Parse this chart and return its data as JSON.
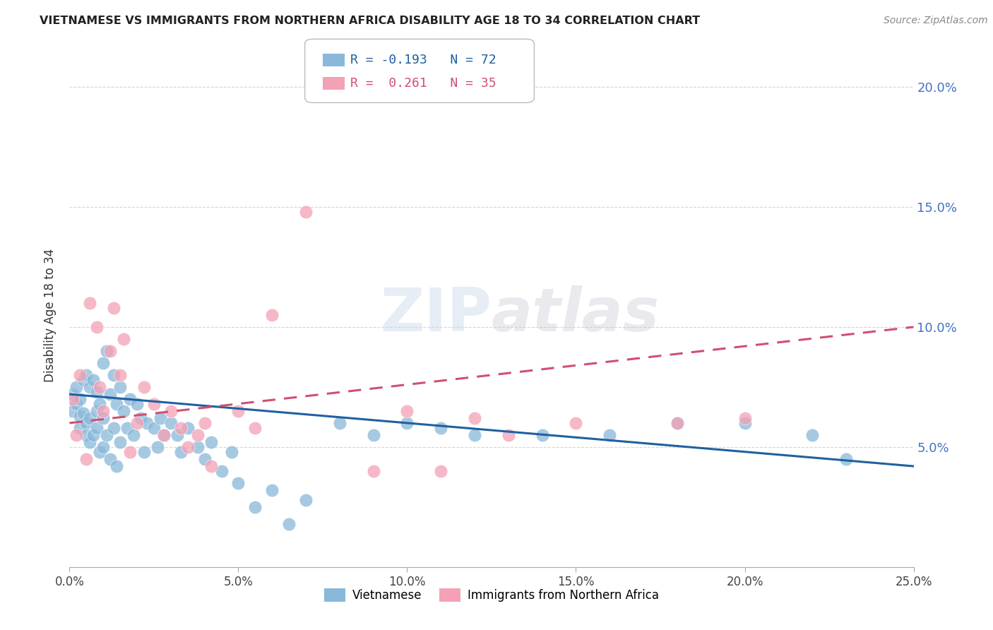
{
  "title": "VIETNAMESE VS IMMIGRANTS FROM NORTHERN AFRICA DISABILITY AGE 18 TO 34 CORRELATION CHART",
  "source": "Source: ZipAtlas.com",
  "ylabel": "Disability Age 18 to 34",
  "xlim": [
    0.0,
    0.25
  ],
  "ylim": [
    0.0,
    0.21
  ],
  "xticks": [
    0.0,
    0.05,
    0.1,
    0.15,
    0.2,
    0.25
  ],
  "yticks": [
    0.05,
    0.1,
    0.15,
    0.2
  ],
  "xtick_labels": [
    "0.0%",
    "5.0%",
    "10.0%",
    "15.0%",
    "20.0%",
    "25.0%"
  ],
  "ytick_labels": [
    "5.0%",
    "10.0%",
    "15.0%",
    "20.0%"
  ],
  "color_vietnamese": "#89b8d9",
  "color_northern_africa": "#f4a0b5",
  "line_color_vietnamese": "#2060a0",
  "line_color_northern_africa": "#d05070",
  "R_vietnamese": -0.193,
  "N_vietnamese": 72,
  "R_northern_africa": 0.261,
  "N_northern_africa": 35,
  "legend_label_vietnamese": "Vietnamese",
  "legend_label_northern_africa": "Immigrants from Northern Africa",
  "background_color": "#ffffff",
  "grid_color": "#cccccc",
  "title_color": "#222222",
  "right_tick_color": "#4472c4",
  "watermark": "ZIPatlas",
  "vietnamese_x": [
    0.001,
    0.001,
    0.002,
    0.002,
    0.003,
    0.003,
    0.003,
    0.004,
    0.004,
    0.005,
    0.005,
    0.005,
    0.006,
    0.006,
    0.006,
    0.007,
    0.007,
    0.008,
    0.008,
    0.008,
    0.009,
    0.009,
    0.01,
    0.01,
    0.01,
    0.011,
    0.011,
    0.012,
    0.012,
    0.013,
    0.013,
    0.014,
    0.014,
    0.015,
    0.015,
    0.016,
    0.017,
    0.018,
    0.019,
    0.02,
    0.021,
    0.022,
    0.023,
    0.025,
    0.026,
    0.027,
    0.028,
    0.03,
    0.032,
    0.033,
    0.035,
    0.038,
    0.04,
    0.042,
    0.045,
    0.048,
    0.05,
    0.055,
    0.06,
    0.065,
    0.07,
    0.08,
    0.09,
    0.1,
    0.11,
    0.12,
    0.14,
    0.16,
    0.18,
    0.2,
    0.22,
    0.23
  ],
  "vietnamese_y": [
    0.072,
    0.065,
    0.075,
    0.068,
    0.07,
    0.063,
    0.058,
    0.078,
    0.064,
    0.08,
    0.06,
    0.055,
    0.075,
    0.062,
    0.052,
    0.078,
    0.055,
    0.073,
    0.065,
    0.058,
    0.068,
    0.048,
    0.085,
    0.062,
    0.05,
    0.09,
    0.055,
    0.072,
    0.045,
    0.08,
    0.058,
    0.068,
    0.042,
    0.075,
    0.052,
    0.065,
    0.058,
    0.07,
    0.055,
    0.068,
    0.062,
    0.048,
    0.06,
    0.058,
    0.05,
    0.062,
    0.055,
    0.06,
    0.055,
    0.048,
    0.058,
    0.05,
    0.045,
    0.052,
    0.04,
    0.048,
    0.035,
    0.025,
    0.032,
    0.018,
    0.028,
    0.06,
    0.055,
    0.06,
    0.058,
    0.055,
    0.055,
    0.055,
    0.06,
    0.06,
    0.055,
    0.045
  ],
  "northern_africa_x": [
    0.001,
    0.002,
    0.003,
    0.005,
    0.006,
    0.008,
    0.009,
    0.01,
    0.012,
    0.013,
    0.015,
    0.016,
    0.018,
    0.02,
    0.022,
    0.025,
    0.028,
    0.03,
    0.033,
    0.035,
    0.038,
    0.04,
    0.042,
    0.05,
    0.055,
    0.06,
    0.07,
    0.09,
    0.1,
    0.11,
    0.12,
    0.13,
    0.15,
    0.18,
    0.2
  ],
  "northern_africa_y": [
    0.07,
    0.055,
    0.08,
    0.045,
    0.11,
    0.1,
    0.075,
    0.065,
    0.09,
    0.108,
    0.08,
    0.095,
    0.048,
    0.06,
    0.075,
    0.068,
    0.055,
    0.065,
    0.058,
    0.05,
    0.055,
    0.06,
    0.042,
    0.065,
    0.058,
    0.105,
    0.148,
    0.04,
    0.065,
    0.04,
    0.062,
    0.055,
    0.06,
    0.06,
    0.062
  ],
  "viet_line_x0": 0.0,
  "viet_line_y0": 0.072,
  "viet_line_x1": 0.25,
  "viet_line_y1": 0.042,
  "na_line_x0": 0.0,
  "na_line_y0": 0.06,
  "na_line_x1": 0.25,
  "na_line_y1": 0.1
}
